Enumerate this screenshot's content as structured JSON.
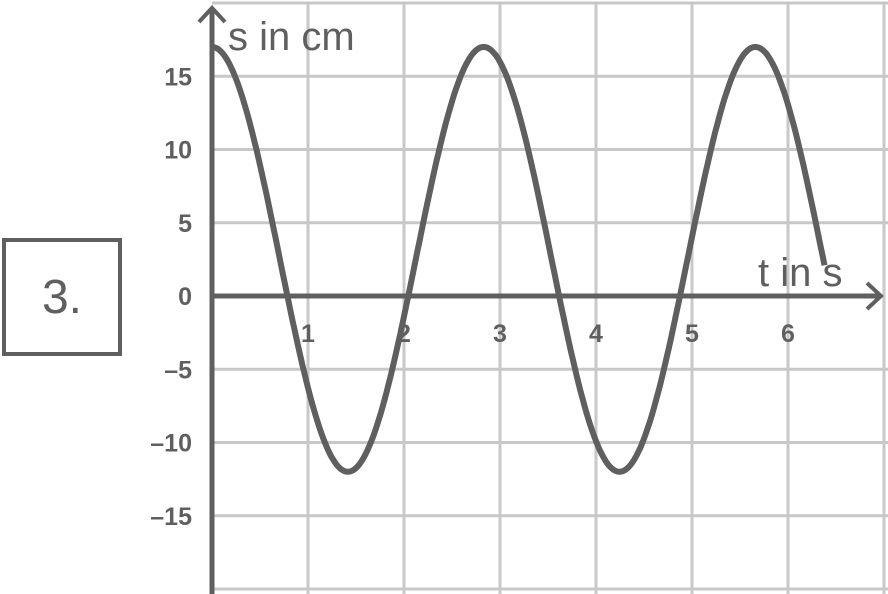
{
  "problem_label": "3.",
  "chart_data": {
    "type": "line",
    "title": "",
    "xlabel": "t in s",
    "ylabel": "s in cm",
    "xlim": [
      0,
      6.9
    ],
    "ylim": [
      -20,
      20
    ],
    "x_ticks": [
      1,
      2,
      3,
      4,
      5,
      6
    ],
    "x_tick_labels": [
      "1",
      "2",
      "3",
      "4",
      "5",
      "6"
    ],
    "y_ticks": [
      15,
      10,
      5,
      0,
      -5,
      -10,
      -15
    ],
    "y_tick_labels": [
      "15",
      "10",
      "5",
      "0",
      "–5",
      "–10",
      "–15"
    ],
    "grid": true,
    "series": [
      {
        "model": {
          "offset": 2.5,
          "amplitude": 14.5,
          "period": 2.83,
          "t_start": 0,
          "t_end": 6.38
        },
        "points": [
          {
            "t": 0,
            "s": 17
          },
          {
            "t": 0.73,
            "s": 0
          },
          {
            "t": 1.42,
            "s": -12
          },
          {
            "t": 2.12,
            "s": 0
          },
          {
            "t": 2.83,
            "s": 17
          },
          {
            "t": 3.56,
            "s": 0
          },
          {
            "t": 4.25,
            "s": -12
          },
          {
            "t": 4.95,
            "s": 0
          },
          {
            "t": 5.67,
            "s": 17
          },
          {
            "t": 6.38,
            "s": -1.5
          }
        ]
      }
    ],
    "colors": {
      "curve": "#5f5f5f",
      "axes": "#5f5f5f",
      "grid": "#c8c8c8",
      "text": "#5f5f5f"
    }
  }
}
